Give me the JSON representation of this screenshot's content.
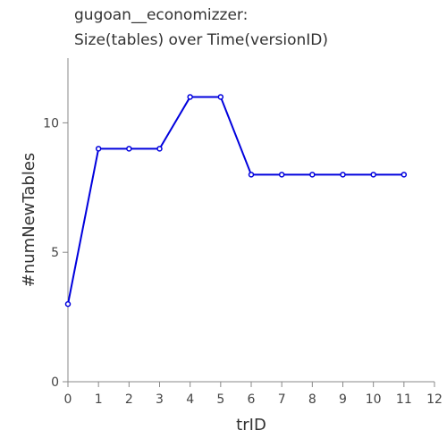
{
  "chart_data": {
    "type": "line",
    "title_lines": [
      "gugoan__economizzer:",
      "Size(tables) over Time(versionID)"
    ],
    "xlabel": "trID",
    "ylabel": "#numNewTables",
    "xlim": [
      0,
      12
    ],
    "ylim": [
      0,
      12.5
    ],
    "xticks": [
      0,
      1,
      2,
      3,
      4,
      5,
      6,
      7,
      8,
      9,
      10,
      11,
      12
    ],
    "yticks": [
      0,
      5,
      10
    ],
    "grid": false,
    "series": [
      {
        "color": "#0000dd",
        "x": [
          0,
          1,
          2,
          3,
          4,
          5,
          6,
          7,
          8,
          9,
          10,
          11
        ],
        "y": [
          3,
          9,
          9,
          9,
          11,
          11,
          8,
          8,
          8,
          8,
          8,
          8
        ]
      }
    ]
  }
}
